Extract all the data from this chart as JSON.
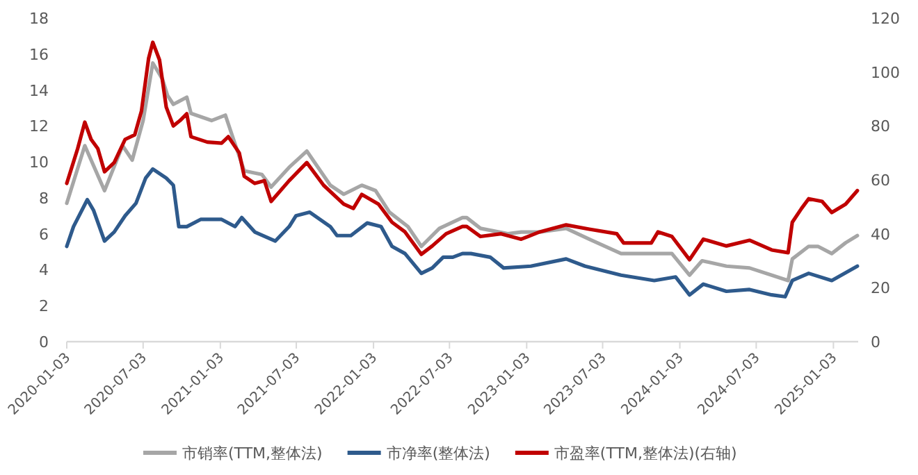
{
  "chart_data": {
    "type": "line",
    "legend": "bottom",
    "xlim": [
      "2020-01-03",
      "2025-03-03"
    ],
    "xticks": [
      "2020-01-03",
      "2020-07-03",
      "2021-01-03",
      "2021-07-03",
      "2022-01-03",
      "2022-07-03",
      "2023-01-03",
      "2023-07-03",
      "2024-01-03",
      "2024-07-03",
      "2025-01-03"
    ],
    "ylim": [
      0,
      18
    ],
    "yticks": [
      0,
      2,
      4,
      6,
      8,
      10,
      12,
      14,
      16,
      18
    ],
    "y2lim": [
      0,
      120
    ],
    "y2ticks": [
      0,
      20,
      40,
      60,
      80,
      100,
      120
    ],
    "series": [
      {
        "name": "市销率(TTM,整体法)",
        "color": "#a6a6a6",
        "x": [
          "2020-01-03",
          "2020-02-15",
          "2020-04-02",
          "2020-05-15",
          "2020-06-07",
          "2020-07-03",
          "2020-07-26",
          "2020-08-18",
          "2020-08-30",
          "2020-09-13",
          "2020-10-15",
          "2020-10-25",
          "2020-12-13",
          "2021-01-15",
          "2021-02-07",
          "2021-03-01",
          "2021-04-12",
          "2021-05-04",
          "2021-06-16",
          "2021-07-28",
          "2021-09-22",
          "2021-10-24",
          "2021-12-06",
          "2022-01-08",
          "2022-02-10",
          "2022-03-26",
          "2022-04-27",
          "2022-06-09",
          "2022-08-03",
          "2022-08-13",
          "2022-09-15",
          "2022-11-19",
          "2022-12-21",
          "2023-02-03",
          "2023-04-07",
          "2023-06-01",
          "2023-08-16",
          "2023-10-20",
          "2023-12-15",
          "2024-01-26",
          "2024-02-25",
          "2024-04-23",
          "2024-06-17",
          "2024-08-09",
          "2024-09-17",
          "2024-09-27",
          "2024-11-05",
          "2024-11-27",
          "2024-12-30",
          "2025-02-01",
          "2025-03-01"
        ],
        "values": [
          7.7,
          10.9,
          8.4,
          10.9,
          10.1,
          12.3,
          15.5,
          14.6,
          13.7,
          13.2,
          13.6,
          12.7,
          12.3,
          12.6,
          11.0,
          9.5,
          9.3,
          8.6,
          9.7,
          10.6,
          8.7,
          8.2,
          8.7,
          8.4,
          7.2,
          6.4,
          5.3,
          6.3,
          6.9,
          6.9,
          6.3,
          6.0,
          6.1,
          6.1,
          6.3,
          5.7,
          4.9,
          4.9,
          4.9,
          3.7,
          4.5,
          4.2,
          4.1,
          3.7,
          3.4,
          4.6,
          5.3,
          5.3,
          4.9,
          5.5,
          5.9
        ]
      },
      {
        "name": "市净率(整体法)",
        "color": "#2e5a8c",
        "x": [
          "2020-01-03",
          "2020-01-19",
          "2020-02-21",
          "2020-03-07",
          "2020-04-02",
          "2020-04-25",
          "2020-05-21",
          "2020-06-16",
          "2020-07-09",
          "2020-07-26",
          "2020-08-27",
          "2020-09-13",
          "2020-09-26",
          "2020-10-15",
          "2020-11-17",
          "2021-01-06",
          "2021-02-07",
          "2021-02-23",
          "2021-03-26",
          "2021-05-14",
          "2021-06-16",
          "2021-07-02",
          "2021-08-04",
          "2021-09-22",
          "2021-10-08",
          "2021-11-10",
          "2021-12-19",
          "2022-01-21",
          "2022-02-16",
          "2022-03-19",
          "2022-04-27",
          "2022-05-23",
          "2022-06-18",
          "2022-07-11",
          "2022-08-03",
          "2022-08-23",
          "2022-10-08",
          "2022-11-09",
          "2023-01-13",
          "2023-04-07",
          "2023-05-22",
          "2023-08-16",
          "2023-11-03",
          "2023-12-24",
          "2024-01-26",
          "2024-02-28",
          "2024-04-23",
          "2024-06-17",
          "2024-08-09",
          "2024-09-10",
          "2024-09-27",
          "2024-11-05",
          "2024-12-30",
          "2025-03-01"
        ],
        "values": [
          5.3,
          6.4,
          7.9,
          7.3,
          5.6,
          6.1,
          7.0,
          7.7,
          9.1,
          9.6,
          9.1,
          8.7,
          6.4,
          6.4,
          6.8,
          6.8,
          6.4,
          6.9,
          6.1,
          5.6,
          6.4,
          7.0,
          7.2,
          6.4,
          5.9,
          5.9,
          6.6,
          6.4,
          5.3,
          4.9,
          3.8,
          4.1,
          4.7,
          4.7,
          4.9,
          4.9,
          4.7,
          4.1,
          4.2,
          4.6,
          4.2,
          3.7,
          3.4,
          3.6,
          2.6,
          3.2,
          2.8,
          2.9,
          2.6,
          2.5,
          3.4,
          3.8,
          3.4,
          4.2
        ]
      },
      {
        "name": "市盈率(TTM,整体法)(右轴)",
        "color": "#c00000",
        "axis": "y2",
        "x": [
          "2020-01-03",
          "2020-01-29",
          "2020-02-15",
          "2020-03-01",
          "2020-03-17",
          "2020-04-02",
          "2020-04-25",
          "2020-05-21",
          "2020-06-13",
          "2020-06-29",
          "2020-07-16",
          "2020-07-26",
          "2020-08-11",
          "2020-08-27",
          "2020-09-13",
          "2020-09-29",
          "2020-10-15",
          "2020-10-25",
          "2020-12-03",
          "2021-01-06",
          "2021-01-22",
          "2021-02-17",
          "2021-03-01",
          "2021-03-26",
          "2021-04-18",
          "2021-05-04",
          "2021-06-16",
          "2021-07-28",
          "2021-09-06",
          "2021-10-24",
          "2021-11-16",
          "2021-12-06",
          "2022-01-15",
          "2022-02-16",
          "2022-03-19",
          "2022-04-27",
          "2022-05-23",
          "2022-06-25",
          "2022-08-03",
          "2022-08-13",
          "2022-09-15",
          "2022-11-03",
          "2022-12-21",
          "2023-02-03",
          "2023-04-07",
          "2023-06-01",
          "2023-08-06",
          "2023-08-22",
          "2023-10-27",
          "2023-11-12",
          "2023-12-15",
          "2024-01-26",
          "2024-02-28",
          "2024-04-23",
          "2024-06-17",
          "2024-08-09",
          "2024-09-17",
          "2024-09-27",
          "2024-10-19",
          "2024-11-05",
          "2024-12-07",
          "2024-12-30",
          "2025-02-01",
          "2025-03-01"
        ],
        "values": [
          58.7,
          71.6,
          81.4,
          75,
          71.6,
          63,
          66.4,
          75,
          76.7,
          85.5,
          105,
          111,
          104.5,
          87,
          80,
          82,
          84.5,
          76,
          74,
          73.6,
          76,
          70,
          61.3,
          58.7,
          59.7,
          52,
          59.7,
          66.4,
          58,
          51,
          49.4,
          54.6,
          51,
          44.3,
          40.7,
          32.4,
          35.5,
          40,
          42.7,
          42.7,
          39,
          40,
          38,
          40.7,
          43.3,
          41.7,
          40,
          36.6,
          36.6,
          40.7,
          39,
          30.4,
          38,
          35.5,
          37.6,
          34,
          33,
          44.3,
          49.4,
          53,
          52,
          47.9,
          51,
          56
        ]
      }
    ]
  }
}
